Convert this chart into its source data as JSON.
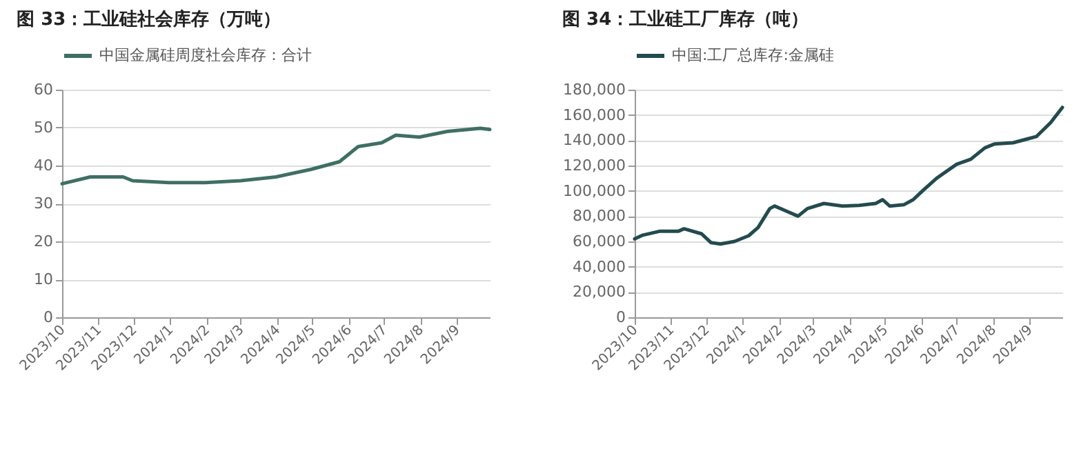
{
  "chart_data": [
    {
      "type": "line",
      "title": "图 33：工业硅社会库存（万吨）",
      "legend": "top",
      "grid": "y",
      "x": [
        "2023-10-01",
        "2023-10-25",
        "2023-11-22",
        "2023-11-30",
        "2023-12-31",
        "2024-01-31",
        "2024-03-01",
        "2024-03-31",
        "2024-04-30",
        "2024-05-24",
        "2024-06-09",
        "2024-06-29",
        "2024-07-11",
        "2024-07-31",
        "2024-08-24",
        "2024-09-21",
        "2024-09-29"
      ],
      "series": [
        {
          "name": "中国金属硅周度社会库存：合计",
          "color": "#3f6f64",
          "values": [
            35.2,
            37,
            37,
            36,
            35.5,
            35.5,
            36,
            37,
            39,
            41,
            45,
            46,
            48,
            47.5,
            49,
            49.8,
            49.5
          ]
        }
      ],
      "xlim": [
        "2023-10-01",
        "2024-09-29"
      ],
      "xticks": [
        {
          "value": "2023-10-01",
          "label": "2023/10"
        },
        {
          "value": "2023-11-01",
          "label": "2023/11"
        },
        {
          "value": "2023-12-01",
          "label": "2023/12"
        },
        {
          "value": "2024-01-01",
          "label": "2024/1"
        },
        {
          "value": "2024-02-01",
          "label": "2024/2"
        },
        {
          "value": "2024-03-01",
          "label": "2024/3"
        },
        {
          "value": "2024-04-01",
          "label": "2024/4"
        },
        {
          "value": "2024-05-01",
          "label": "2024/5"
        },
        {
          "value": "2024-06-01",
          "label": "2024/6"
        },
        {
          "value": "2024-07-01",
          "label": "2024/7"
        },
        {
          "value": "2024-08-01",
          "label": "2024/8"
        },
        {
          "value": "2024-09-01",
          "label": "2024/9"
        }
      ],
      "ylim": [
        0,
        60
      ],
      "yticks": [
        0,
        10,
        20,
        30,
        40,
        50,
        60
      ]
    },
    {
      "type": "line",
      "title": "图 34：工业硅工厂库存（吨）",
      "legend": "top",
      "grid": "y",
      "x": [
        "2023-10-01",
        "2023-10-08",
        "2023-10-22",
        "2023-11-07",
        "2023-11-12",
        "2023-11-27",
        "2023-12-05",
        "2023-12-13",
        "2023-12-25",
        "2024-01-06",
        "2024-01-14",
        "2024-01-24",
        "2024-01-28",
        "2024-02-07",
        "2024-02-17",
        "2024-02-25",
        "2024-03-10",
        "2024-03-26",
        "2024-04-09",
        "2024-04-23",
        "2024-04-29",
        "2024-05-05",
        "2024-05-17",
        "2024-05-25",
        "2024-06-02",
        "2024-06-14",
        "2024-07-01",
        "2024-07-13",
        "2024-07-25",
        "2024-08-02",
        "2024-08-18",
        "2024-08-30",
        "2024-09-07",
        "2024-09-19",
        "2024-09-29"
      ],
      "series": [
        {
          "name": "中国:工厂总库存:金属硅",
          "color": "#234b4f",
          "values": [
            62000,
            65000,
            68000,
            68000,
            70000,
            66000,
            59000,
            58000,
            60000,
            64500,
            71000,
            86000,
            88000,
            84000,
            80000,
            86000,
            90000,
            88000,
            88500,
            90000,
            93000,
            88000,
            89000,
            93000,
            100000,
            110000,
            121000,
            125000,
            134000,
            137000,
            138000,
            141000,
            143000,
            154000,
            166000
          ]
        }
      ],
      "xlim": [
        "2023-10-01",
        "2024-09-29"
      ],
      "xticks": [
        {
          "value": "2023-10-01",
          "label": "2023/10"
        },
        {
          "value": "2023-11-01",
          "label": "2023/11"
        },
        {
          "value": "2023-12-01",
          "label": "2023/12"
        },
        {
          "value": "2024-01-01",
          "label": "2024/1"
        },
        {
          "value": "2024-02-01",
          "label": "2024/2"
        },
        {
          "value": "2024-03-01",
          "label": "2024/3"
        },
        {
          "value": "2024-04-01",
          "label": "2024/4"
        },
        {
          "value": "2024-05-01",
          "label": "2024/5"
        },
        {
          "value": "2024-06-01",
          "label": "2024/6"
        },
        {
          "value": "2024-07-01",
          "label": "2024/7"
        },
        {
          "value": "2024-08-01",
          "label": "2024/8"
        },
        {
          "value": "2024-09-01",
          "label": "2024/9"
        }
      ],
      "ylim": [
        0,
        180000
      ],
      "yticks": [
        {
          "value": 0,
          "label": "0"
        },
        {
          "value": 20000,
          "label": "20,000"
        },
        {
          "value": 40000,
          "label": "40,000"
        },
        {
          "value": 60000,
          "label": "60,000"
        },
        {
          "value": 80000,
          "label": "80,000"
        },
        {
          "value": 100000,
          "label": "100,000"
        },
        {
          "value": 120000,
          "label": "120,000"
        },
        {
          "value": 140000,
          "label": "140,000"
        },
        {
          "value": 160000,
          "label": "160,000"
        },
        {
          "value": 180000,
          "label": "180,000"
        }
      ]
    }
  ]
}
